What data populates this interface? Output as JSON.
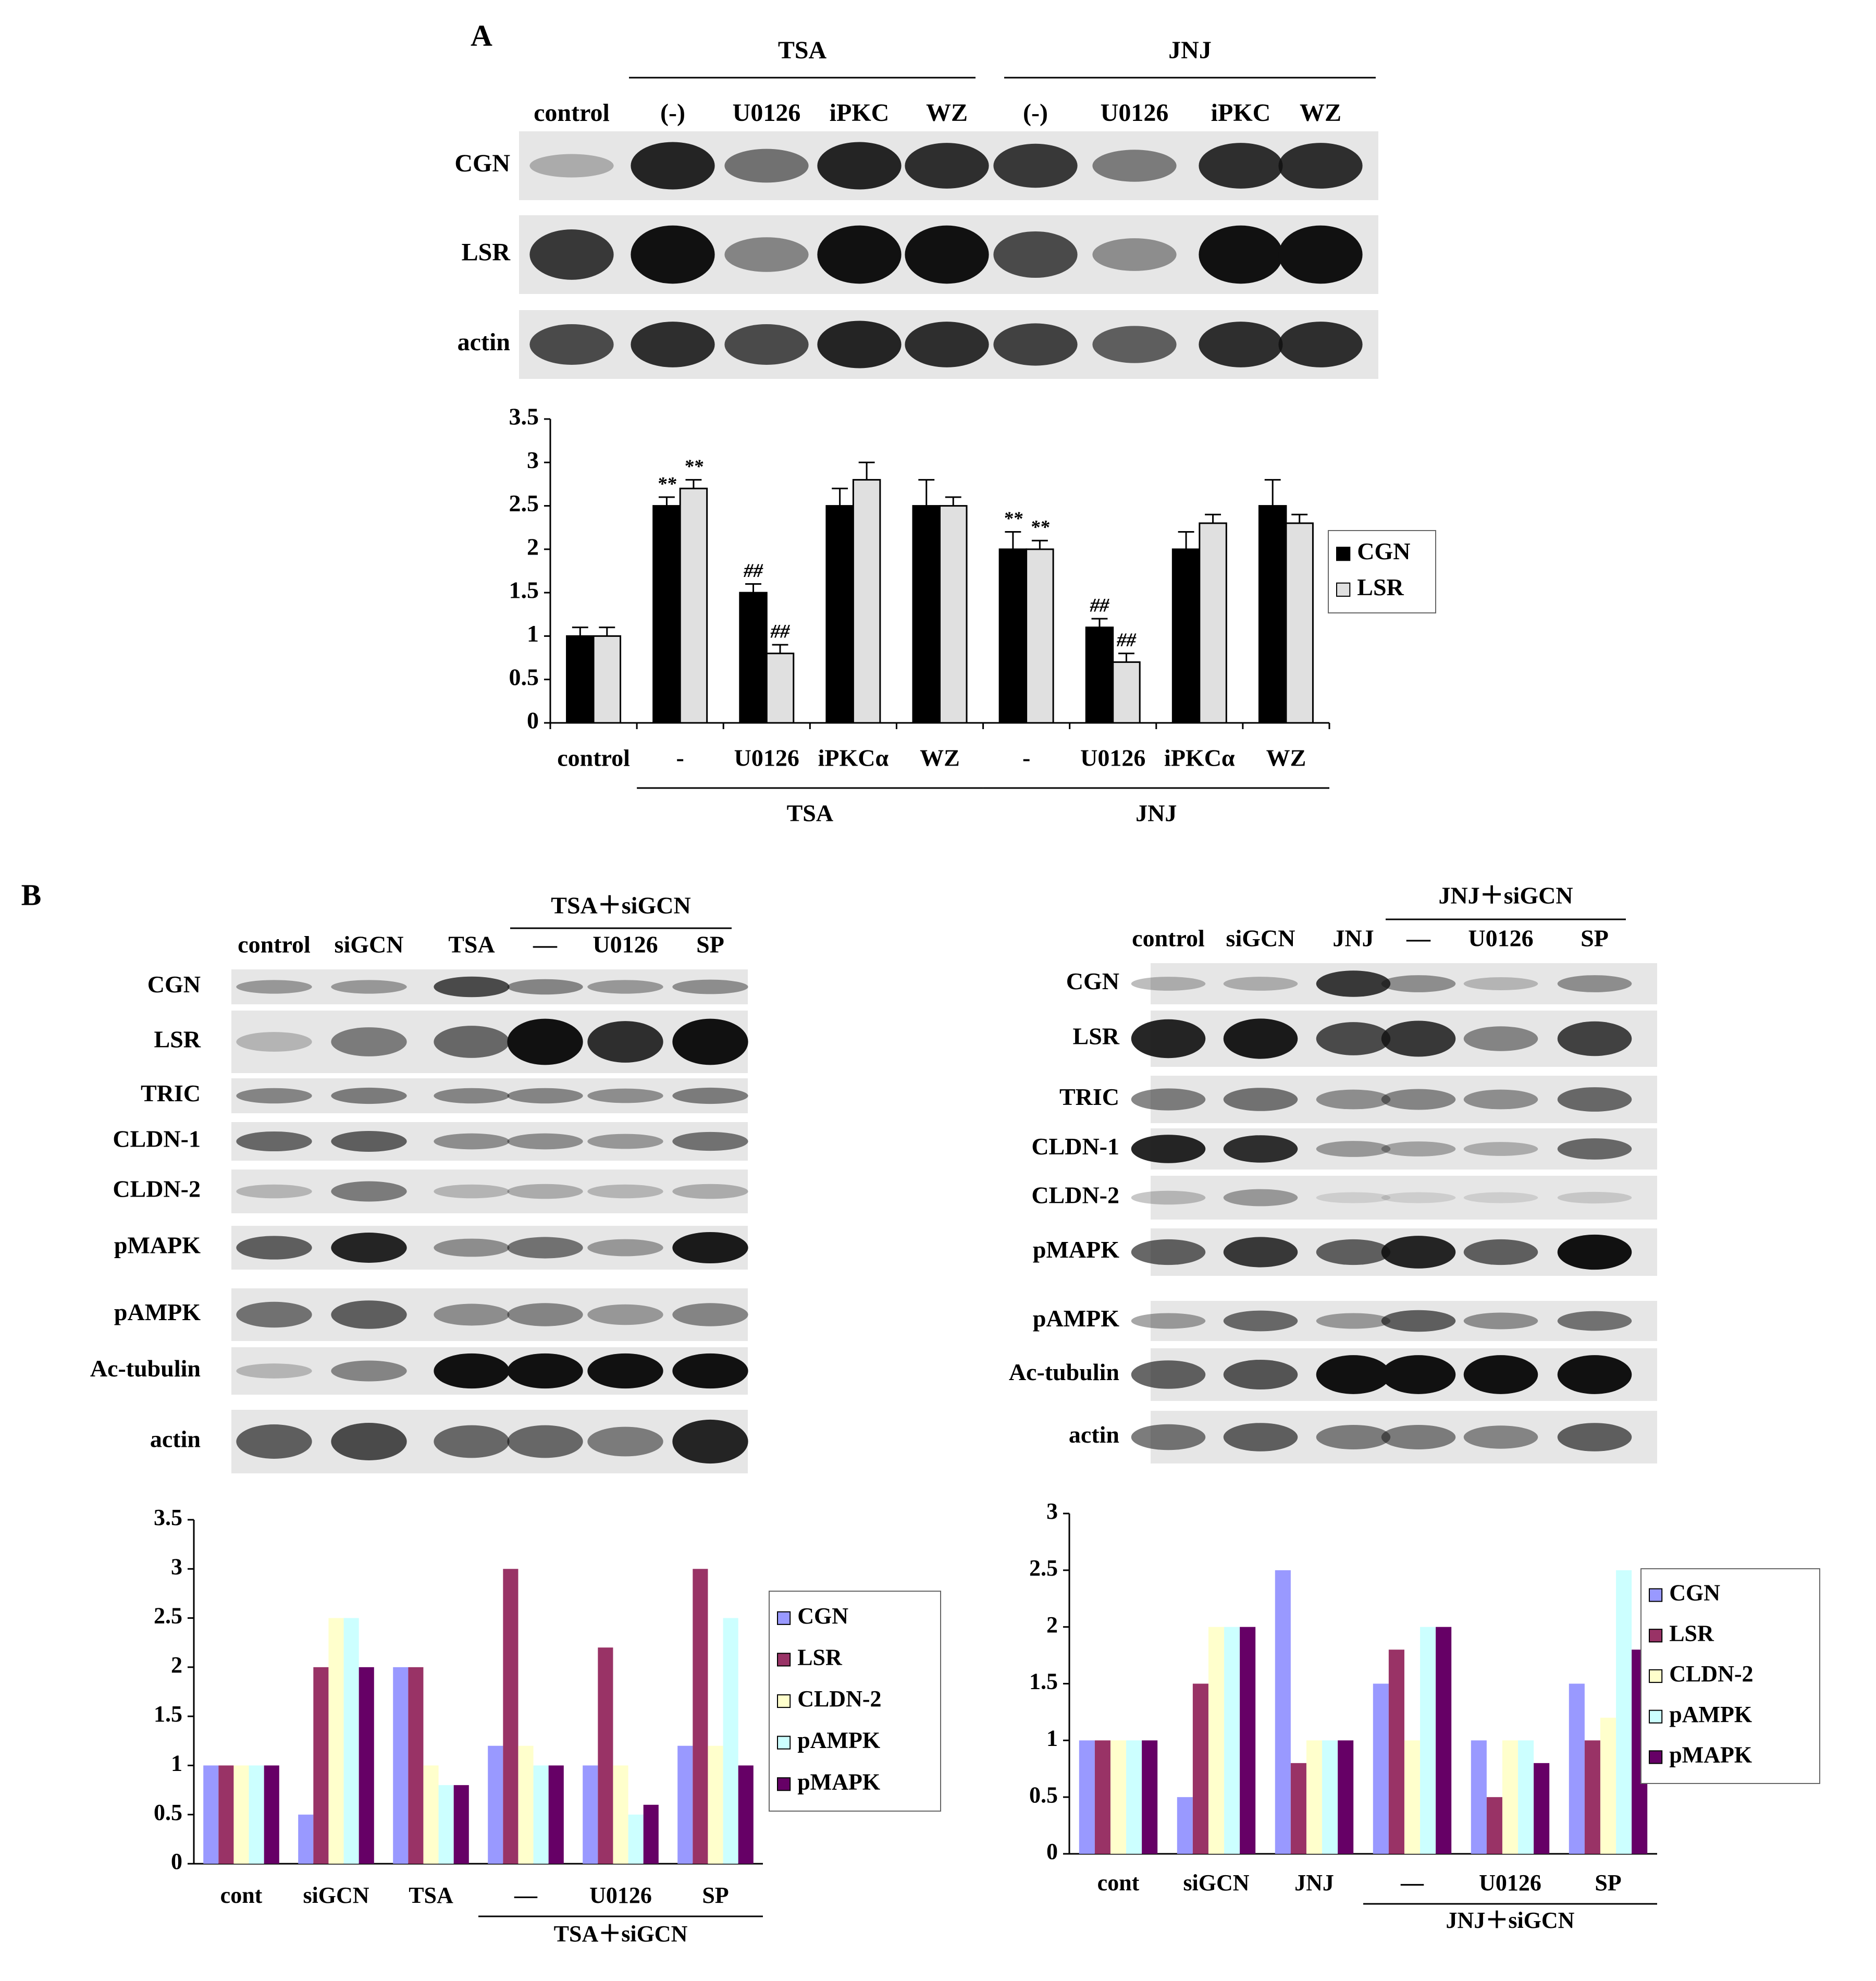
{
  "panels": [
    "A",
    "B"
  ],
  "blots": [
    {
      "groups": [
        "TSA",
        "JNJ"
      ],
      "lanes": [
        "control",
        "(-)",
        "U0126",
        "iPKC",
        "WZ",
        "(-)",
        "U0126",
        "iPKC",
        "WZ"
      ],
      "rows": [
        "CGN",
        "LSR",
        "actin"
      ]
    },
    {
      "groups": [
        "TSA＋siGCN"
      ],
      "lanes": [
        "control",
        "siGCN",
        "TSA",
        "—",
        "U0126",
        "SP"
      ],
      "rows": [
        "CGN",
        "LSR",
        "TRIC",
        "CLDN-1",
        "CLDN-2",
        "pMAPK",
        "pAMPK",
        "Ac-tubulin",
        "actin"
      ]
    },
    {
      "groups": [
        "JNJ＋siGCN"
      ],
      "lanes": [
        "control",
        "siGCN",
        "JNJ",
        "—",
        "U0126",
        "SP"
      ],
      "rows": [
        "CGN",
        "LSR",
        "TRIC",
        "CLDN-1",
        "CLDN-2",
        "pMAPK",
        "pAMPK",
        "Ac-tubulin",
        "actin"
      ]
    }
  ],
  "chart_data": [
    {
      "type": "bar",
      "categories": [
        "control",
        "-",
        "U0126",
        "iPKCα",
        "WZ",
        "-",
        "U0126",
        "iPKCα",
        "WZ"
      ],
      "category_groups": [
        "TSA",
        "JNJ"
      ],
      "series": [
        {
          "name": "CGN",
          "color": "#000000",
          "values": [
            1,
            2.5,
            1.5,
            2.5,
            2.5,
            2.0,
            1.1,
            2.0,
            2.5
          ],
          "errors": [
            0.1,
            0.1,
            0.1,
            0.2,
            0.3,
            0.2,
            0.1,
            0.2,
            0.3
          ],
          "labels": [
            null,
            "**",
            "##",
            null,
            null,
            "**",
            "##",
            null,
            null
          ]
        },
        {
          "name": "LSR",
          "color": "#e0e0e0",
          "values": [
            1,
            2.7,
            0.8,
            2.8,
            2.5,
            2.0,
            0.7,
            2.3,
            2.3
          ],
          "errors": [
            0.1,
            0.1,
            0.1,
            0.2,
            0.1,
            0.1,
            0.1,
            0.1,
            0.1
          ],
          "labels": [
            null,
            "**",
            "##",
            null,
            null,
            "**",
            "##",
            null,
            null
          ]
        }
      ],
      "ylim": [
        0,
        3.5
      ],
      "yticks": [
        0,
        0.5,
        1,
        1.5,
        2,
        2.5,
        3,
        3.5
      ],
      "legend": "right"
    },
    {
      "type": "bar",
      "categories": [
        "cont",
        "siGCN",
        "TSA",
        "—",
        "U0126",
        "SP"
      ],
      "category_groups": [
        "TSA＋siGCN"
      ],
      "series": [
        {
          "name": "CGN",
          "color": "#9999ff",
          "values": [
            1,
            0.5,
            2,
            1.2,
            1,
            1.2
          ]
        },
        {
          "name": "LSR",
          "color": "#993366",
          "values": [
            1,
            2,
            2,
            3,
            2.2,
            3
          ]
        },
        {
          "name": "CLDN-2",
          "color": "#ffffcc",
          "values": [
            1,
            2.5,
            1,
            1.2,
            1,
            1.2
          ]
        },
        {
          "name": "pAMPK",
          "color": "#ccffff",
          "values": [
            1,
            2.5,
            0.8,
            1,
            0.5,
            2.5
          ]
        },
        {
          "name": "pMAPK",
          "color": "#660066",
          "values": [
            1,
            2,
            0.8,
            1,
            0.6,
            1
          ]
        }
      ],
      "ylim": [
        0,
        3.5
      ],
      "yticks": [
        0,
        0.5,
        1,
        1.5,
        2,
        2.5,
        3,
        3.5
      ],
      "legend": "right"
    },
    {
      "type": "bar",
      "categories": [
        "cont",
        "siGCN",
        "JNJ",
        "—",
        "U0126",
        "SP"
      ],
      "category_groups": [
        "JNJ＋siGCN"
      ],
      "series": [
        {
          "name": "CGN",
          "color": "#9999ff",
          "values": [
            1,
            0.5,
            2.5,
            1.5,
            1,
            1.5
          ]
        },
        {
          "name": "LSR",
          "color": "#993366",
          "values": [
            1,
            1.5,
            0.8,
            1.8,
            0.5,
            1
          ]
        },
        {
          "name": "CLDN-2",
          "color": "#ffffcc",
          "values": [
            1,
            2,
            1,
            1,
            1,
            1.2
          ]
        },
        {
          "name": "pAMPK",
          "color": "#ccffff",
          "values": [
            1,
            2,
            1,
            2,
            1,
            2.5
          ]
        },
        {
          "name": "pMAPK",
          "color": "#660066",
          "values": [
            1,
            2,
            1,
            2,
            0.8,
            1.8
          ]
        }
      ],
      "ylim": [
        0,
        3
      ],
      "yticks": [
        0,
        0.5,
        1,
        1.5,
        2,
        2.5,
        3
      ],
      "legend": "right"
    }
  ]
}
